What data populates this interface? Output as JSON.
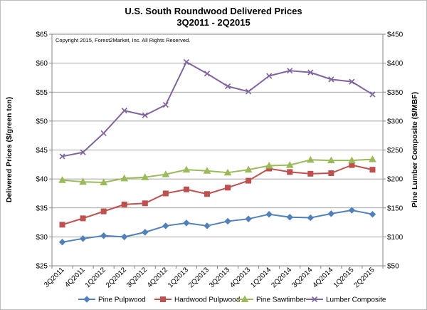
{
  "chart_data": {
    "type": "line",
    "title": "U.S. South Roundwood Delivered Prices",
    "subtitle": "3Q2011 - 2Q2015",
    "copyright": "Copyright 2015, Forest2Market, Inc. All Rights Reserved.",
    "ylabel": "Delivered Prices ($/green ton)",
    "y2label": "Pine Lumber Composite ($/MBF)",
    "ylim": [
      25,
      65
    ],
    "y2lim": [
      50,
      450
    ],
    "yticks": [
      "$25",
      "$30",
      "$35",
      "$40",
      "$45",
      "$50",
      "$55",
      "$60",
      "$65"
    ],
    "y2ticks": [
      "$50",
      "$100",
      "$150",
      "$200",
      "$250",
      "$300",
      "$350",
      "$400",
      "$450"
    ],
    "grid": true,
    "legend_position": "bottom",
    "categories": [
      "3Q2011",
      "4Q2011",
      "1Q2012",
      "2Q2012",
      "3Q2012",
      "4Q2012",
      "1Q2013",
      "2Q2013",
      "3Q2013",
      "4Q2013",
      "1Q2014",
      "2Q2014",
      "3Q2014",
      "4Q2014",
      "1Q2015",
      "2Q2015"
    ],
    "series": [
      {
        "name": "Pine Pulpwood",
        "axis": "left",
        "color": "#4f81bd",
        "marker": "diamond",
        "values": [
          29.1,
          29.7,
          30.2,
          30.0,
          30.8,
          31.9,
          32.4,
          31.9,
          32.7,
          33.1,
          33.9,
          33.4,
          33.3,
          34.0,
          34.6,
          33.9
        ]
      },
      {
        "name": "Hardwood Pulpwood",
        "axis": "left",
        "color": "#c0504d",
        "marker": "square",
        "values": [
          32.1,
          33.2,
          34.4,
          35.6,
          35.8,
          37.5,
          38.2,
          37.4,
          38.5,
          39.7,
          41.8,
          41.2,
          40.9,
          41.0,
          42.4,
          41.6
        ]
      },
      {
        "name": "Pine Sawtimber",
        "axis": "left",
        "color": "#9bbb59",
        "marker": "triangle",
        "values": [
          39.8,
          39.5,
          39.4,
          40.1,
          40.3,
          40.8,
          41.6,
          41.4,
          41.1,
          41.6,
          42.3,
          42.4,
          43.3,
          43.2,
          43.2,
          43.4
        ]
      },
      {
        "name": "Lumber Composite",
        "axis": "right",
        "color": "#8064a2",
        "marker": "x",
        "values": [
          239,
          246,
          279,
          318,
          310,
          328,
          402,
          382,
          360,
          351,
          378,
          387,
          384,
          372,
          368,
          346
        ]
      }
    ]
  }
}
